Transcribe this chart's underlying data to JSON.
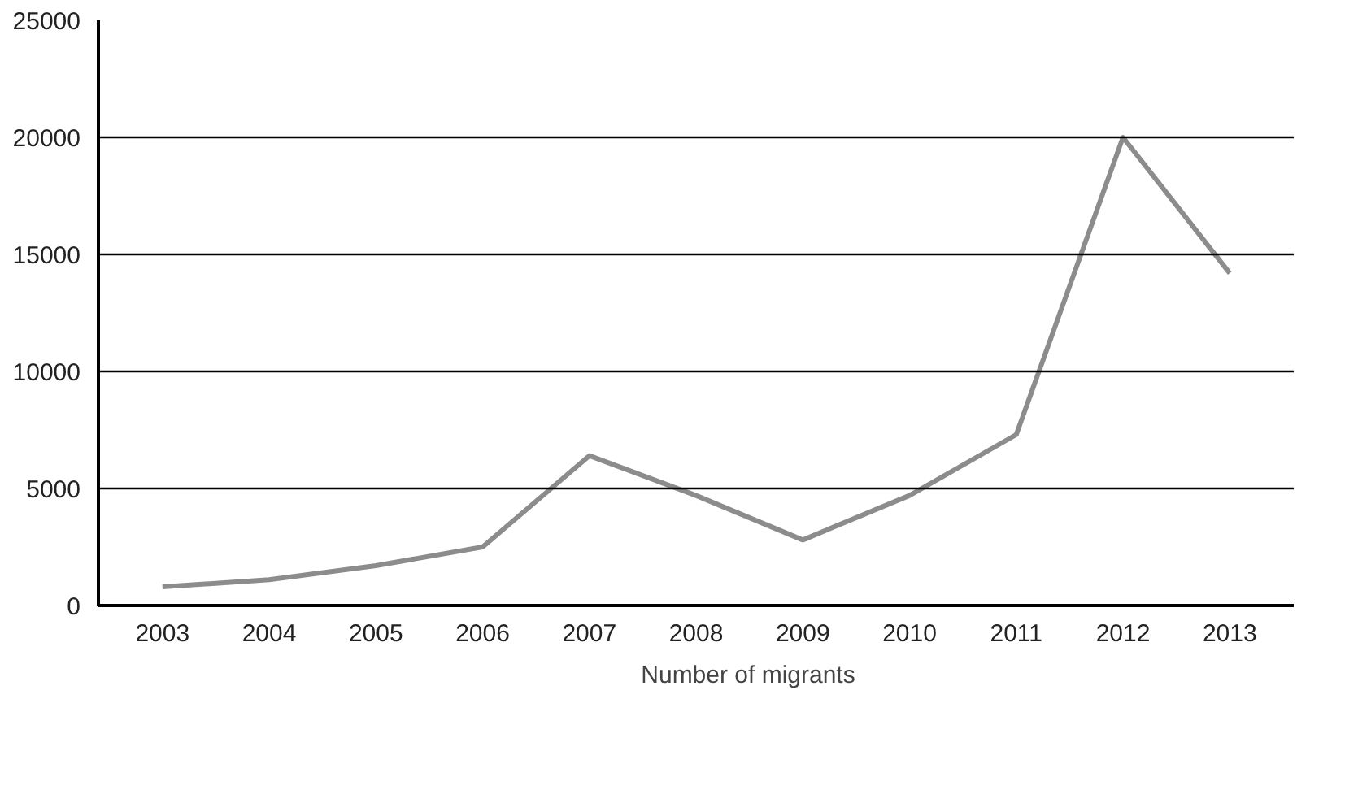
{
  "chart_data": {
    "type": "line",
    "categories": [
      "2003",
      "2004",
      "2005",
      "2006",
      "2007",
      "2008",
      "2009",
      "2010",
      "2011",
      "2012",
      "2013"
    ],
    "series": [
      {
        "name": "Number of migrants",
        "color": "#8c8c8c",
        "values": [
          800,
          1100,
          1700,
          2500,
          6400,
          4700,
          2800,
          4700,
          7300,
          20000,
          14200
        ]
      }
    ],
    "ylim": [
      0,
      25000
    ],
    "yticks": [
      0,
      5000,
      10000,
      15000,
      20000,
      25000
    ],
    "grid": "y",
    "legend": "bottom",
    "marker": "none",
    "line_style": "solid"
  }
}
